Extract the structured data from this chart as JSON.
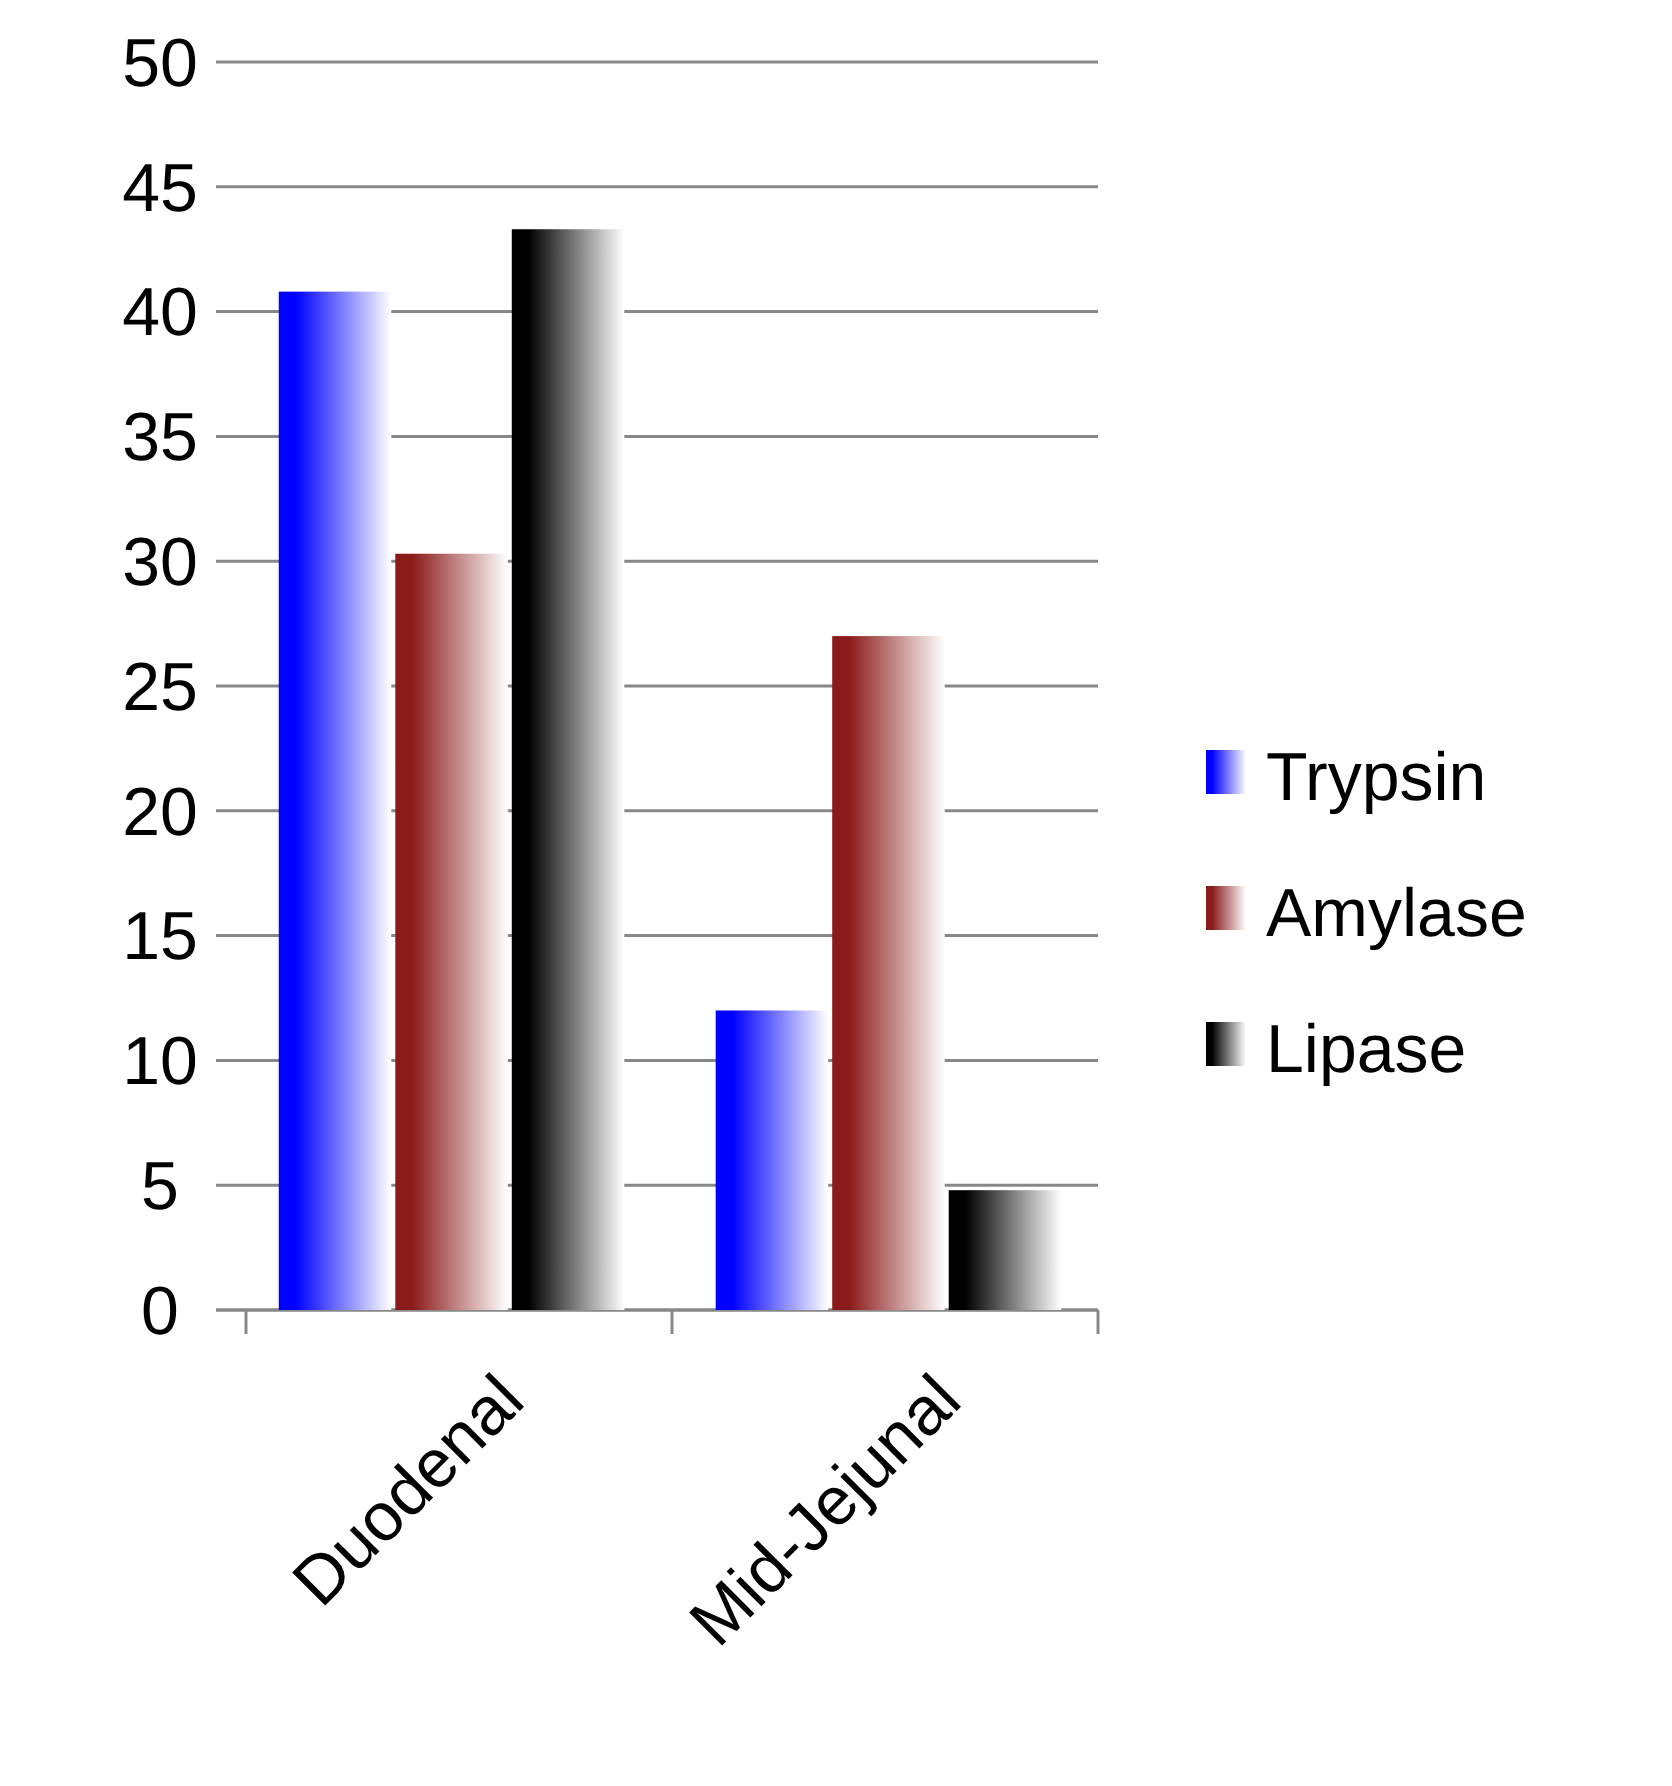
{
  "chart_data": {
    "type": "bar",
    "categories": [
      "Duodenal",
      "Mid-Jejunal"
    ],
    "series": [
      {
        "name": "Trypsin",
        "color": "#0000ff",
        "values": [
          40.8,
          12
        ]
      },
      {
        "name": "Amylase",
        "color": "#8b1a1a",
        "values": [
          30.3,
          27
        ]
      },
      {
        "name": "Lipase",
        "color": "#000000",
        "values": [
          43.3,
          4.8
        ]
      }
    ],
    "ylim": [
      0,
      50
    ],
    "yticks": [
      0,
      5,
      10,
      15,
      20,
      25,
      30,
      35,
      40,
      45,
      50
    ],
    "grid": "y",
    "legend": "right"
  }
}
